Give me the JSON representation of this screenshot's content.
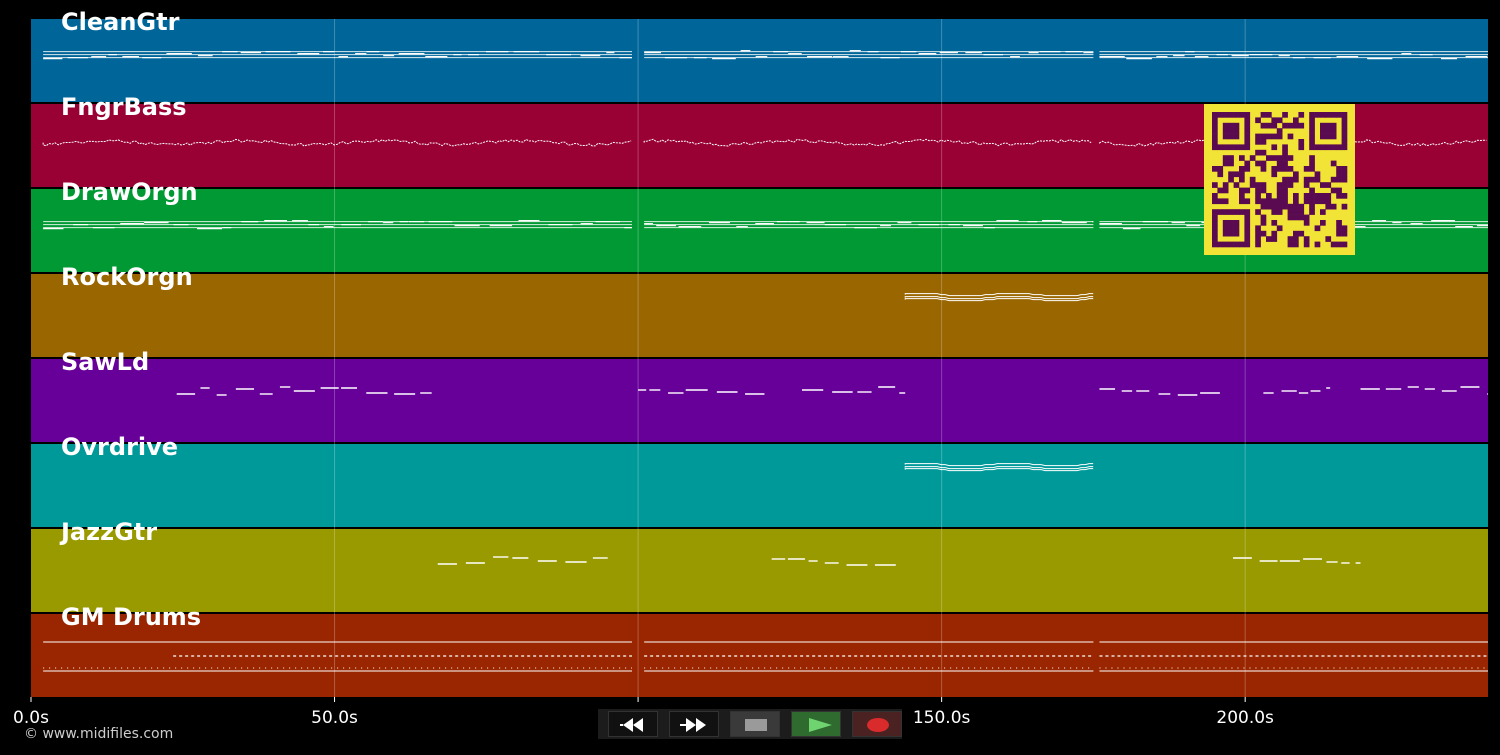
{
  "chart_data": {
    "type": "piano-roll",
    "xlim": [
      0,
      240
    ],
    "x_ticks": [
      0,
      50,
      100,
      150,
      200
    ],
    "x_tick_labels": [
      "0.0s",
      "50.0s",
      "100.0s",
      "150.0s",
      "200.0s"
    ],
    "tracks": [
      {
        "name": "CleanGtr",
        "color": "#006699",
        "pattern": "dense",
        "spans": [
          [
            2,
            99
          ],
          [
            101,
            175
          ],
          [
            176,
            240
          ]
        ]
      },
      {
        "name": "FngrBass",
        "color": "#990033",
        "pattern": "bass",
        "spans": [
          [
            2,
            99
          ],
          [
            101,
            175
          ],
          [
            176,
            240
          ]
        ]
      },
      {
        "name": "DrawOrgn",
        "color": "#009933",
        "pattern": "dense",
        "spans": [
          [
            2,
            99
          ],
          [
            101,
            175
          ],
          [
            176,
            240
          ]
        ]
      },
      {
        "name": "RockOrgn",
        "color": "#996600",
        "pattern": "small",
        "spans": [
          [
            144,
            175
          ]
        ]
      },
      {
        "name": "SawLd",
        "color": "#660099",
        "pattern": "phrase",
        "spans": [
          [
            24,
            66
          ],
          [
            100,
            121
          ],
          [
            127,
            144
          ],
          [
            176,
            197
          ],
          [
            203,
            214
          ],
          [
            219,
            240
          ]
        ]
      },
      {
        "name": "Ovrdrive",
        "color": "#009999",
        "pattern": "small",
        "spans": [
          [
            144,
            175
          ]
        ]
      },
      {
        "name": "JazzGtr",
        "color": "#999900",
        "pattern": "phrase",
        "spans": [
          [
            67,
            95
          ],
          [
            122,
            143
          ],
          [
            198,
            219
          ]
        ]
      },
      {
        "name": "GM Drums",
        "color": "#992600",
        "pattern": "drums",
        "spans": [
          [
            2,
            99
          ],
          [
            101,
            175
          ],
          [
            176,
            240
          ]
        ]
      }
    ]
  },
  "transport": {
    "rewind_icon": "rewind-icon",
    "forward_icon": "fast-forward-icon",
    "stop_icon": "stop-icon",
    "play_icon": "play-icon",
    "record_icon": "record-icon"
  },
  "footer": {
    "copyright": "© www.midifiles.com"
  },
  "colors": {
    "background": "#000000",
    "qr_fg": "#5a0a50",
    "qr_bg": "#f2e436"
  }
}
